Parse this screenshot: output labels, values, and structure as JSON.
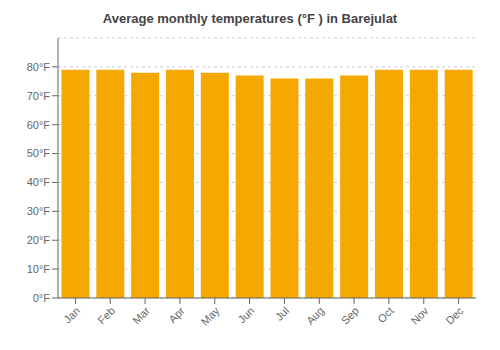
{
  "chart_data": {
    "type": "bar",
    "title": "Average monthly temperatures (°F ) in Barejulat",
    "categories": [
      "Jan",
      "Feb",
      "Mar",
      "Apr",
      "May",
      "Jun",
      "Jul",
      "Aug",
      "Sep",
      "Oct",
      "Nov",
      "Dec"
    ],
    "values": [
      79,
      79,
      78,
      79,
      78,
      77,
      76,
      76,
      77,
      79,
      79,
      79
    ],
    "color": "#F5A800",
    "ylim": [
      0,
      90
    ],
    "yticks": [
      {
        "value": 0,
        "label": "0°F"
      },
      {
        "value": 10,
        "label": "10°F"
      },
      {
        "value": 20,
        "label": "20°F"
      },
      {
        "value": 30,
        "label": "30°F"
      },
      {
        "value": 40,
        "label": "40°F"
      },
      {
        "value": 50,
        "label": "50°F"
      },
      {
        "value": 60,
        "label": "60°F"
      },
      {
        "value": 70,
        "label": "70°F"
      },
      {
        "value": 80,
        "label": "80°F"
      }
    ],
    "grid": true
  }
}
